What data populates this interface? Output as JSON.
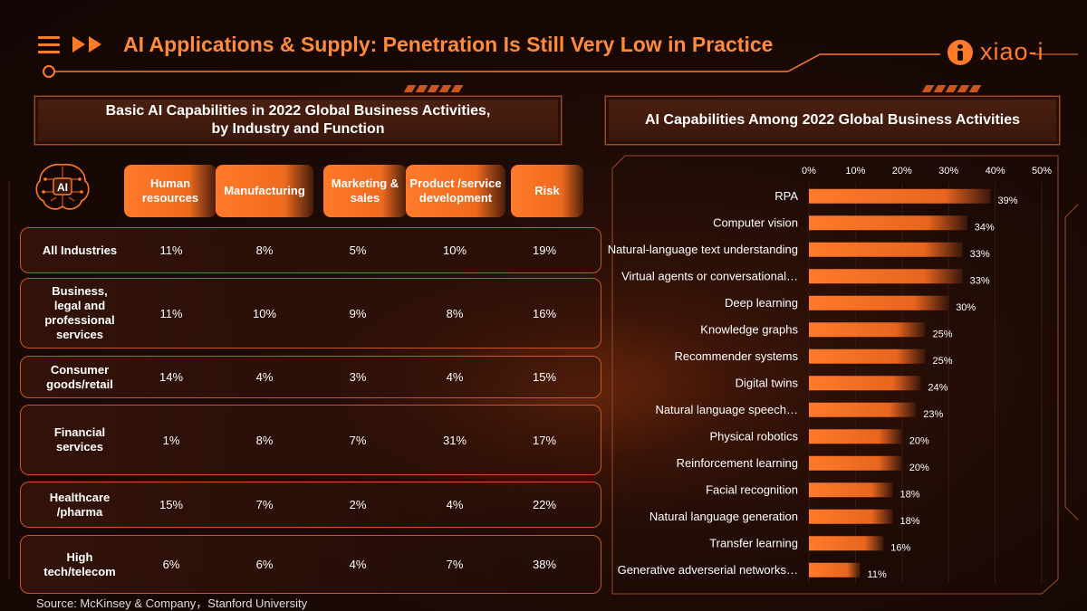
{
  "header": {
    "title": "AI Applications & Supply: Penetration Is Still Very Low in Practice",
    "brand": "xiao-i",
    "accent": "#ff7a2a"
  },
  "left_panel": {
    "title_line1": "Basic AI Capabilities in 2022 Global Business Activities,",
    "title_line2": "by Industry and Function",
    "brain_label": "AI",
    "columns": [
      "Human resources",
      "Manufacturing",
      "Marketing & sales",
      "Product /service development",
      "Risk"
    ],
    "rows": [
      {
        "label": "All Industries",
        "values": [
          "11%",
          "8%",
          "5%",
          "10%",
          "19%"
        ]
      },
      {
        "label": "Business, legal and professional services",
        "values": [
          "11%",
          "10%",
          "9%",
          "8%",
          "16%"
        ]
      },
      {
        "label": "Consumer goods/retail",
        "values": [
          "14%",
          "4%",
          "3%",
          "4%",
          "15%"
        ]
      },
      {
        "label": "Financial services",
        "values": [
          "1%",
          "8%",
          "7%",
          "31%",
          "17%"
        ]
      },
      {
        "label": "Healthcare /pharma",
        "values": [
          "15%",
          "7%",
          "2%",
          "4%",
          "22%"
        ]
      },
      {
        "label": "High tech/telecom",
        "values": [
          "6%",
          "6%",
          "4%",
          "7%",
          "38%"
        ]
      }
    ]
  },
  "right_panel": {
    "title": "AI Capabilities Among 2022 Global Business Activities"
  },
  "chart_data": {
    "type": "bar",
    "orientation": "horizontal",
    "title": "AI Capabilities Among 2022 Global Business Activities",
    "categories": [
      "RPA",
      "Computer vision",
      "Natural-language text understanding",
      "Virtual agents or conversational…",
      "Deep learning",
      "Knowledge graphs",
      "Recommender systems",
      "Digital twins",
      "Natural language speech…",
      "Physical robotics",
      "Reinforcement learning",
      "Facial recognition",
      "Natural language generation",
      "Transfer learning",
      "Generative adverserial networks…"
    ],
    "values": [
      39,
      34,
      33,
      33,
      30,
      25,
      25,
      24,
      23,
      20,
      20,
      18,
      18,
      16,
      11
    ],
    "value_labels": [
      "39%",
      "34%",
      "33%",
      "33%",
      "30%",
      "25%",
      "25%",
      "24%",
      "23%",
      "20%",
      "20%",
      "18%",
      "18%",
      "16%",
      "11%"
    ],
    "xticks": [
      "0%",
      "10%",
      "20%",
      "30%",
      "40%",
      "50%"
    ],
    "xlim": [
      0,
      50
    ],
    "axis_position": "top",
    "bar_color": "#ff7a2a"
  },
  "footer": {
    "source": "Source: McKinsey & Company，Stanford University"
  }
}
